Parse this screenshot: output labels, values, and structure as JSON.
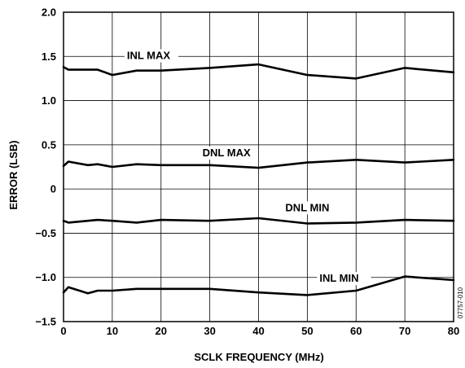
{
  "chart_data": {
    "type": "line",
    "xlabel": "SCLK FREQUENCY (MHz)",
    "ylabel": "ERROR (LSB)",
    "xlim": [
      0,
      80
    ],
    "ylim": [
      -1.5,
      2.0
    ],
    "x_ticks": [
      "0",
      "10",
      "20",
      "30",
      "40",
      "50",
      "60",
      "70",
      "80"
    ],
    "y_ticks": [
      "2.0",
      "1.5",
      "1.0",
      "0.5",
      "0",
      "−0.5",
      "−1.0",
      "−1.5"
    ],
    "grid": true,
    "figure_id": "07757-010",
    "series": [
      {
        "name": "INL MAX",
        "x": [
          0,
          1,
          7,
          10,
          15,
          20,
          30,
          40,
          50,
          60,
          70,
          80
        ],
        "y": [
          1.38,
          1.35,
          1.35,
          1.29,
          1.34,
          1.34,
          1.37,
          1.41,
          1.29,
          1.25,
          1.37,
          1.32
        ]
      },
      {
        "name": "DNL MAX",
        "x": [
          0,
          1,
          5,
          7,
          10,
          15,
          20,
          30,
          40,
          50,
          60,
          70,
          80
        ],
        "y": [
          0.26,
          0.31,
          0.27,
          0.28,
          0.25,
          0.28,
          0.27,
          0.27,
          0.24,
          0.3,
          0.33,
          0.3,
          0.33
        ]
      },
      {
        "name": "DNL MIN",
        "x": [
          0,
          1,
          7,
          10,
          15,
          20,
          30,
          40,
          50,
          60,
          70,
          80
        ],
        "y": [
          -0.36,
          -0.38,
          -0.35,
          -0.36,
          -0.38,
          -0.35,
          -0.36,
          -0.33,
          -0.39,
          -0.38,
          -0.35,
          -0.36
        ]
      },
      {
        "name": "INL MIN",
        "x": [
          0,
          1,
          5,
          7,
          10,
          15,
          20,
          30,
          40,
          50,
          60,
          70,
          80
        ],
        "y": [
          -1.17,
          -1.11,
          -1.18,
          -1.15,
          -1.15,
          -1.13,
          -1.13,
          -1.13,
          -1.17,
          -1.2,
          -1.15,
          -0.99,
          -1.03
        ]
      }
    ]
  }
}
